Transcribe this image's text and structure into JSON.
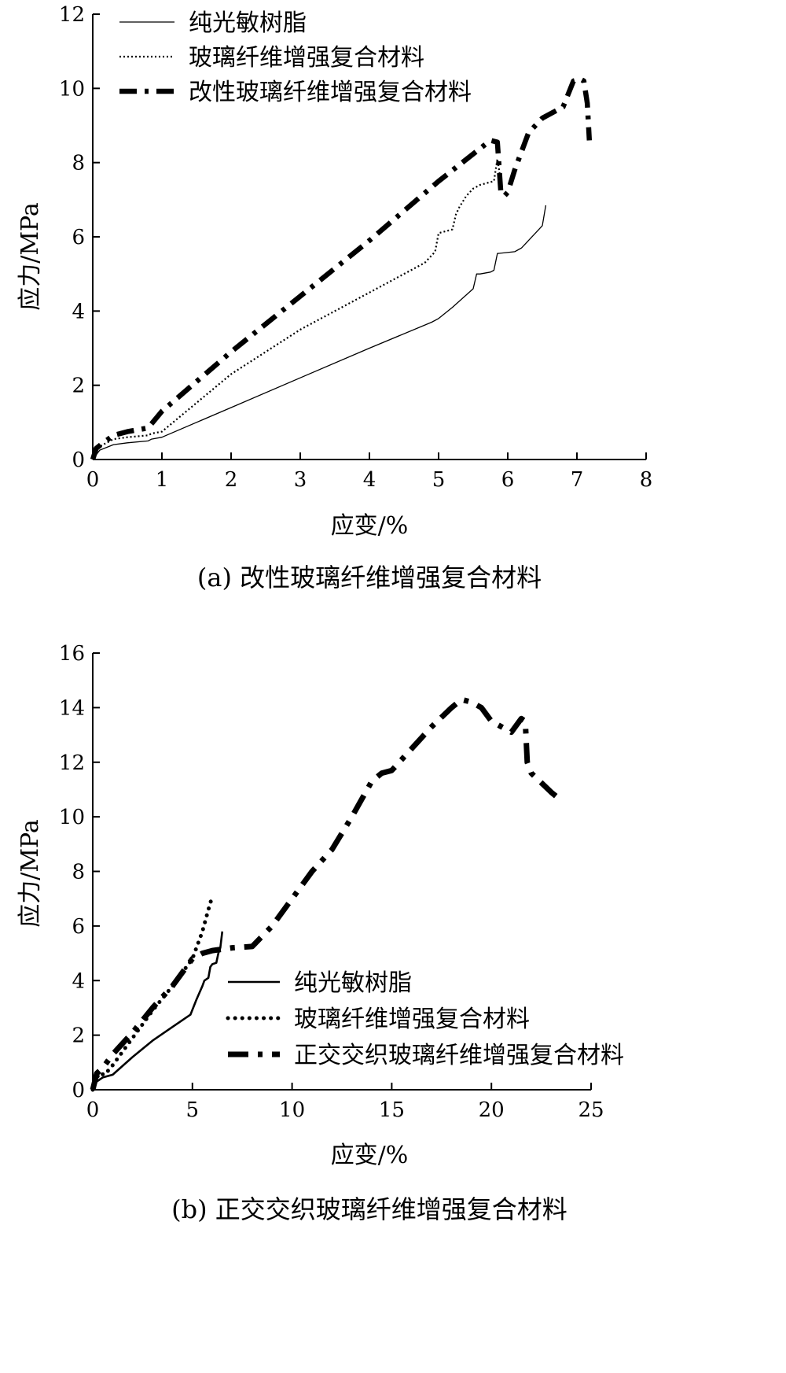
{
  "chart_data": [
    {
      "type": "line",
      "caption": "(a) 改性玻璃纤维增强复合材料",
      "xlabel": "应变/%",
      "ylabel": "应力/MPa",
      "xlim": [
        0,
        8
      ],
      "ylim": [
        0,
        12
      ],
      "xticks": [
        "0",
        "1",
        "2",
        "3",
        "4",
        "5",
        "6",
        "7",
        "8"
      ],
      "yticks": [
        "0",
        "2",
        "4",
        "6",
        "8",
        "10",
        "12"
      ],
      "grid": false,
      "legend_position": "top-left",
      "series": [
        {
          "name": "纯光敏树脂",
          "style": "thin-solid",
          "x": [
            0,
            0.1,
            0.3,
            0.5,
            0.8,
            0.85,
            1.0,
            2.0,
            3.0,
            4.0,
            4.9,
            5.0,
            5.2,
            5.5,
            5.55,
            5.6,
            5.75,
            5.8,
            5.85,
            6.1,
            6.15,
            6.2,
            6.45,
            6.5,
            6.55
          ],
          "y": [
            0,
            0.25,
            0.4,
            0.45,
            0.5,
            0.55,
            0.6,
            1.4,
            2.2,
            3.0,
            3.7,
            3.8,
            4.1,
            4.6,
            5.0,
            5.0,
            5.05,
            5.1,
            5.55,
            5.6,
            5.65,
            5.7,
            6.2,
            6.3,
            6.85
          ]
        },
        {
          "name": "玻璃纤维增强复合材料",
          "style": "dotted",
          "x": [
            0,
            0.1,
            0.3,
            0.5,
            0.8,
            0.85,
            1.0,
            2.0,
            3.0,
            4.0,
            4.8,
            4.9,
            4.95,
            5.0,
            5.2,
            5.25,
            5.3,
            5.4,
            5.5,
            5.6,
            5.7,
            5.8,
            5.85,
            5.9
          ],
          "y": [
            0,
            0.35,
            0.55,
            0.6,
            0.65,
            0.7,
            0.75,
            2.3,
            3.5,
            4.5,
            5.3,
            5.5,
            5.6,
            6.1,
            6.2,
            6.6,
            6.8,
            7.1,
            7.3,
            7.4,
            7.45,
            7.5,
            8.1,
            7.5
          ]
        },
        {
          "name": "改性玻璃纤维增强复合材料",
          "style": "thick-dash-dot",
          "x": [
            0,
            0.05,
            0.15,
            0.3,
            0.5,
            0.8,
            1.0,
            2.0,
            3.0,
            4.0,
            5.0,
            5.75,
            5.85,
            5.9,
            5.95,
            6.0,
            6.1,
            6.3,
            6.5,
            6.8,
            6.95,
            7.05,
            7.1,
            7.15,
            7.18
          ],
          "y": [
            0,
            0.3,
            0.45,
            0.65,
            0.75,
            0.85,
            1.3,
            2.9,
            4.4,
            5.9,
            7.5,
            8.6,
            8.55,
            7.2,
            7.1,
            7.2,
            7.8,
            8.8,
            9.2,
            9.5,
            10.2,
            10.25,
            10.2,
            9.6,
            8.6
          ]
        }
      ]
    },
    {
      "type": "line",
      "caption": "(b)  正交交织玻璃纤维增强复合材料",
      "xlabel": "应变/%",
      "ylabel": "应力/MPa",
      "xlim": [
        0,
        25
      ],
      "ylim": [
        0,
        16
      ],
      "xticks": [
        "0",
        "5",
        "10",
        "15",
        "20",
        "25"
      ],
      "yticks": [
        "0",
        "2",
        "4",
        "6",
        "8",
        "10",
        "12",
        "14",
        "16"
      ],
      "grid": false,
      "legend_position": "bottom-center",
      "series": [
        {
          "name": "纯光敏树脂",
          "style": "solid",
          "x": [
            0,
            0.2,
            0.5,
            1.0,
            2.0,
            3.0,
            4.0,
            4.9,
            5.2,
            5.5,
            5.6,
            5.8,
            5.9,
            6.0,
            6.2,
            6.3,
            6.4,
            6.5
          ],
          "y": [
            0,
            0.3,
            0.45,
            0.55,
            1.2,
            1.8,
            2.3,
            2.75,
            3.3,
            3.8,
            4.0,
            4.1,
            4.5,
            4.6,
            4.65,
            5.0,
            5.2,
            5.8
          ]
        },
        {
          "name": "玻璃纤维增强复合材料",
          "style": "dotted",
          "x": [
            0,
            0.3,
            0.6,
            1.0,
            2.0,
            3.0,
            4.0,
            5.0,
            5.5,
            5.8,
            6.0
          ],
          "y": [
            0,
            0.6,
            0.55,
            0.9,
            1.9,
            2.9,
            3.8,
            4.8,
            5.8,
            6.6,
            7.1
          ]
        },
        {
          "name": "正交交织玻璃纤维增强复合材料",
          "style": "thick-dash-dot",
          "x": [
            0,
            0.2,
            0.5,
            1.0,
            2.0,
            3.0,
            4.0,
            5.0,
            5.5,
            6.0,
            7.0,
            8.0,
            9.0,
            10.0,
            11.0,
            12.0,
            13.0,
            14.0,
            14.5,
            15.0,
            16.0,
            17.0,
            18.0,
            18.5,
            19.0,
            19.5,
            20.0,
            21.0,
            21.5,
            21.7,
            21.8,
            22.0,
            23.0,
            23.5
          ],
          "y": [
            0,
            0.6,
            0.8,
            1.3,
            2.1,
            3.0,
            3.8,
            4.8,
            5.0,
            5.1,
            5.2,
            5.25,
            6.0,
            7.0,
            8.0,
            8.8,
            10.0,
            11.3,
            11.6,
            11.7,
            12.5,
            13.3,
            14.0,
            14.3,
            14.2,
            14.0,
            13.5,
            13.1,
            13.6,
            13.5,
            12.0,
            11.6,
            10.9,
            10.6
          ]
        }
      ]
    }
  ]
}
